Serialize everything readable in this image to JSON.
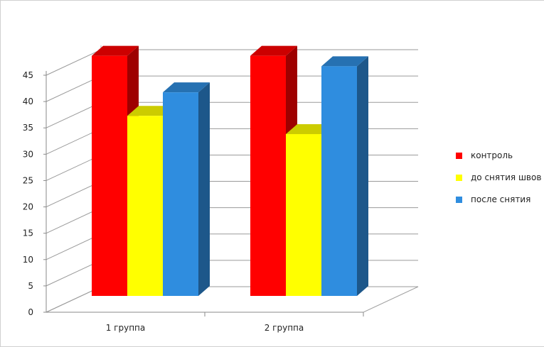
{
  "chart_data": {
    "type": "bar",
    "categories": [
      "1 группа",
      "2 группа"
    ],
    "series": [
      {
        "name": "контроль",
        "values": [
          46,
          46
        ],
        "color": "#ff0000"
      },
      {
        "name": "до снятия швов",
        "values": [
          34.5,
          31
        ],
        "color": "#ffff00"
      },
      {
        "name": "после снятия",
        "values": [
          39,
          44
        ],
        "color": "#2f8ddf"
      }
    ],
    "y_ticks": [
      "0",
      "5",
      "10",
      "15",
      "20",
      "25",
      "30",
      "35",
      "40",
      "45"
    ],
    "ylim": [
      0,
      50
    ],
    "grid": true,
    "legend_position": "right",
    "style": "3d-clustered-column"
  }
}
